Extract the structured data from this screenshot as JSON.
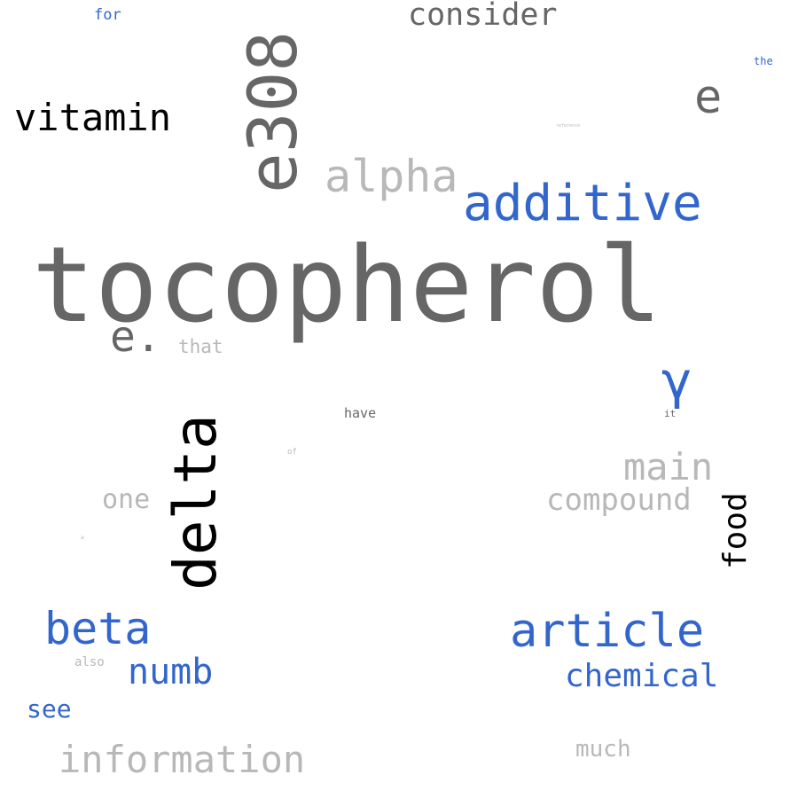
{
  "palette": {
    "dark_gray": "#666666",
    "light_gray": "#b8b8b8",
    "black": "#000000",
    "blue": "#3366cc",
    "background": "#ffffff"
  },
  "words": {
    "tocopherol": "tocopherol",
    "e308": "e308",
    "consider": "consider",
    "vitamin": "vitamin",
    "alpha": "alpha",
    "additive": "additive",
    "e_single": "e",
    "e_dot": "e.",
    "that": "that",
    "gamma": "γ",
    "delta": "delta",
    "have": "have",
    "it": "it",
    "of": "of",
    "main": "main",
    "one": "one",
    "compound": "compound",
    "food": "food",
    "beta": "beta",
    "article": "article",
    "also": "also",
    "numb": "numb",
    "chemical": "chemical",
    "see": "see",
    "information": "information",
    "much": "much",
    "for": "for",
    "the": "the",
    "reference": "reference",
    "tiny": "a"
  }
}
